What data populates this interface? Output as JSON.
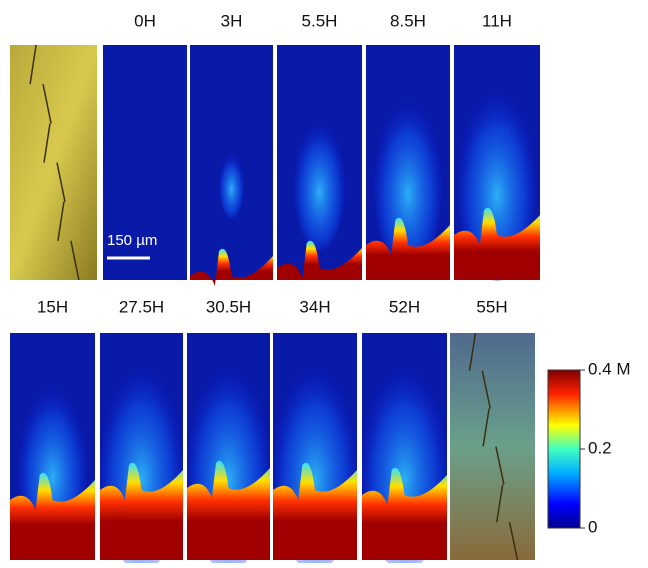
{
  "top_row": {
    "labels": [
      "0H",
      "3H",
      "5.5H",
      "8.5H",
      "11H"
    ]
  },
  "scale_bar": "150 µm",
  "bottom_row": {
    "labels": [
      "15H",
      "27.5H",
      "30.5H",
      "34H",
      "52H",
      "55H"
    ]
  },
  "colorbar": {
    "lim": [
      0,
      0.4
    ],
    "ticks": [
      {
        "value": 0.4,
        "label": "0.4 M"
      },
      0.2,
      0
    ]
  }
}
